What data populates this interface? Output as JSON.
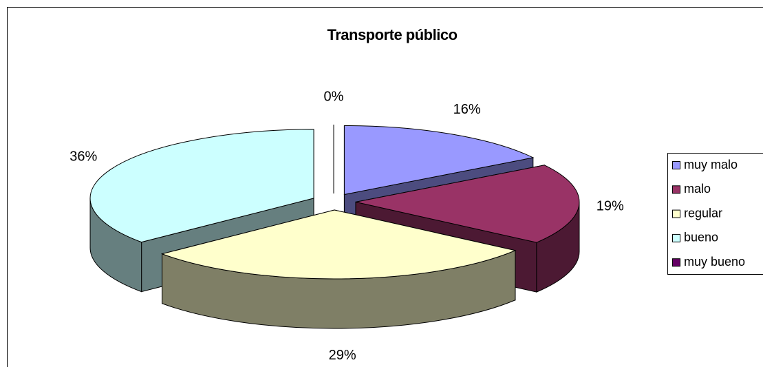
{
  "chart_data": {
    "type": "pie",
    "title": "Transporte público",
    "categories": [
      "muy malo",
      "malo",
      "regular",
      "bueno",
      "muy bueno"
    ],
    "values": [
      16,
      19,
      29,
      36,
      0
    ],
    "value_labels": [
      "16%",
      "19%",
      "29%",
      "36%",
      "0%"
    ],
    "colors": [
      "#9999ff",
      "#993366",
      "#ffffcc",
      "#ccffff",
      "#660066"
    ],
    "legend": "right"
  }
}
